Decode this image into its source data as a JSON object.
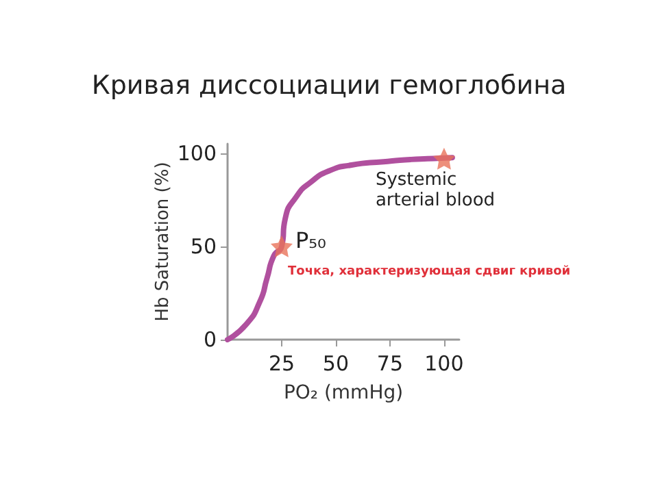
{
  "chart_data": {
    "type": "line",
    "title": "Кривая диссоциации гемоглобина",
    "xlabel": "PO₂ (mmHg)",
    "ylabel": "Hb Saturation (%)",
    "xlim": [
      0,
      107
    ],
    "ylim": [
      0,
      105
    ],
    "xticks": [
      25,
      50,
      75,
      100
    ],
    "yticks": [
      0,
      50,
      100
    ],
    "grid": false,
    "series": [
      {
        "color": "#b0509e",
        "marker": "none",
        "x": [
          0,
          8.7,
          15,
          18.2,
          21.4,
          25,
          26.6,
          32,
          38.3,
          46.7,
          57.3,
          72,
          84.8,
          98.5,
          103.8
        ],
        "values": [
          0,
          8.3,
          20.6,
          32.8,
          45,
          50,
          64.7,
          77,
          84.3,
          90.4,
          93.6,
          95.4,
          96.6,
          97.3,
          97.6
        ]
      },
      {
        "type": "scatter",
        "color": "#e8735a",
        "marker": "star",
        "x": [
          25,
          100
        ],
        "values": [
          50,
          97
        ]
      }
    ],
    "annotations": [
      {
        "text": "P₅₀",
        "x": 25,
        "y": 50
      },
      {
        "text": "Systemic arterial blood",
        "x": 100,
        "y": 97
      },
      "Точка, характеризующая сдвиг кривой"
    ]
  }
}
